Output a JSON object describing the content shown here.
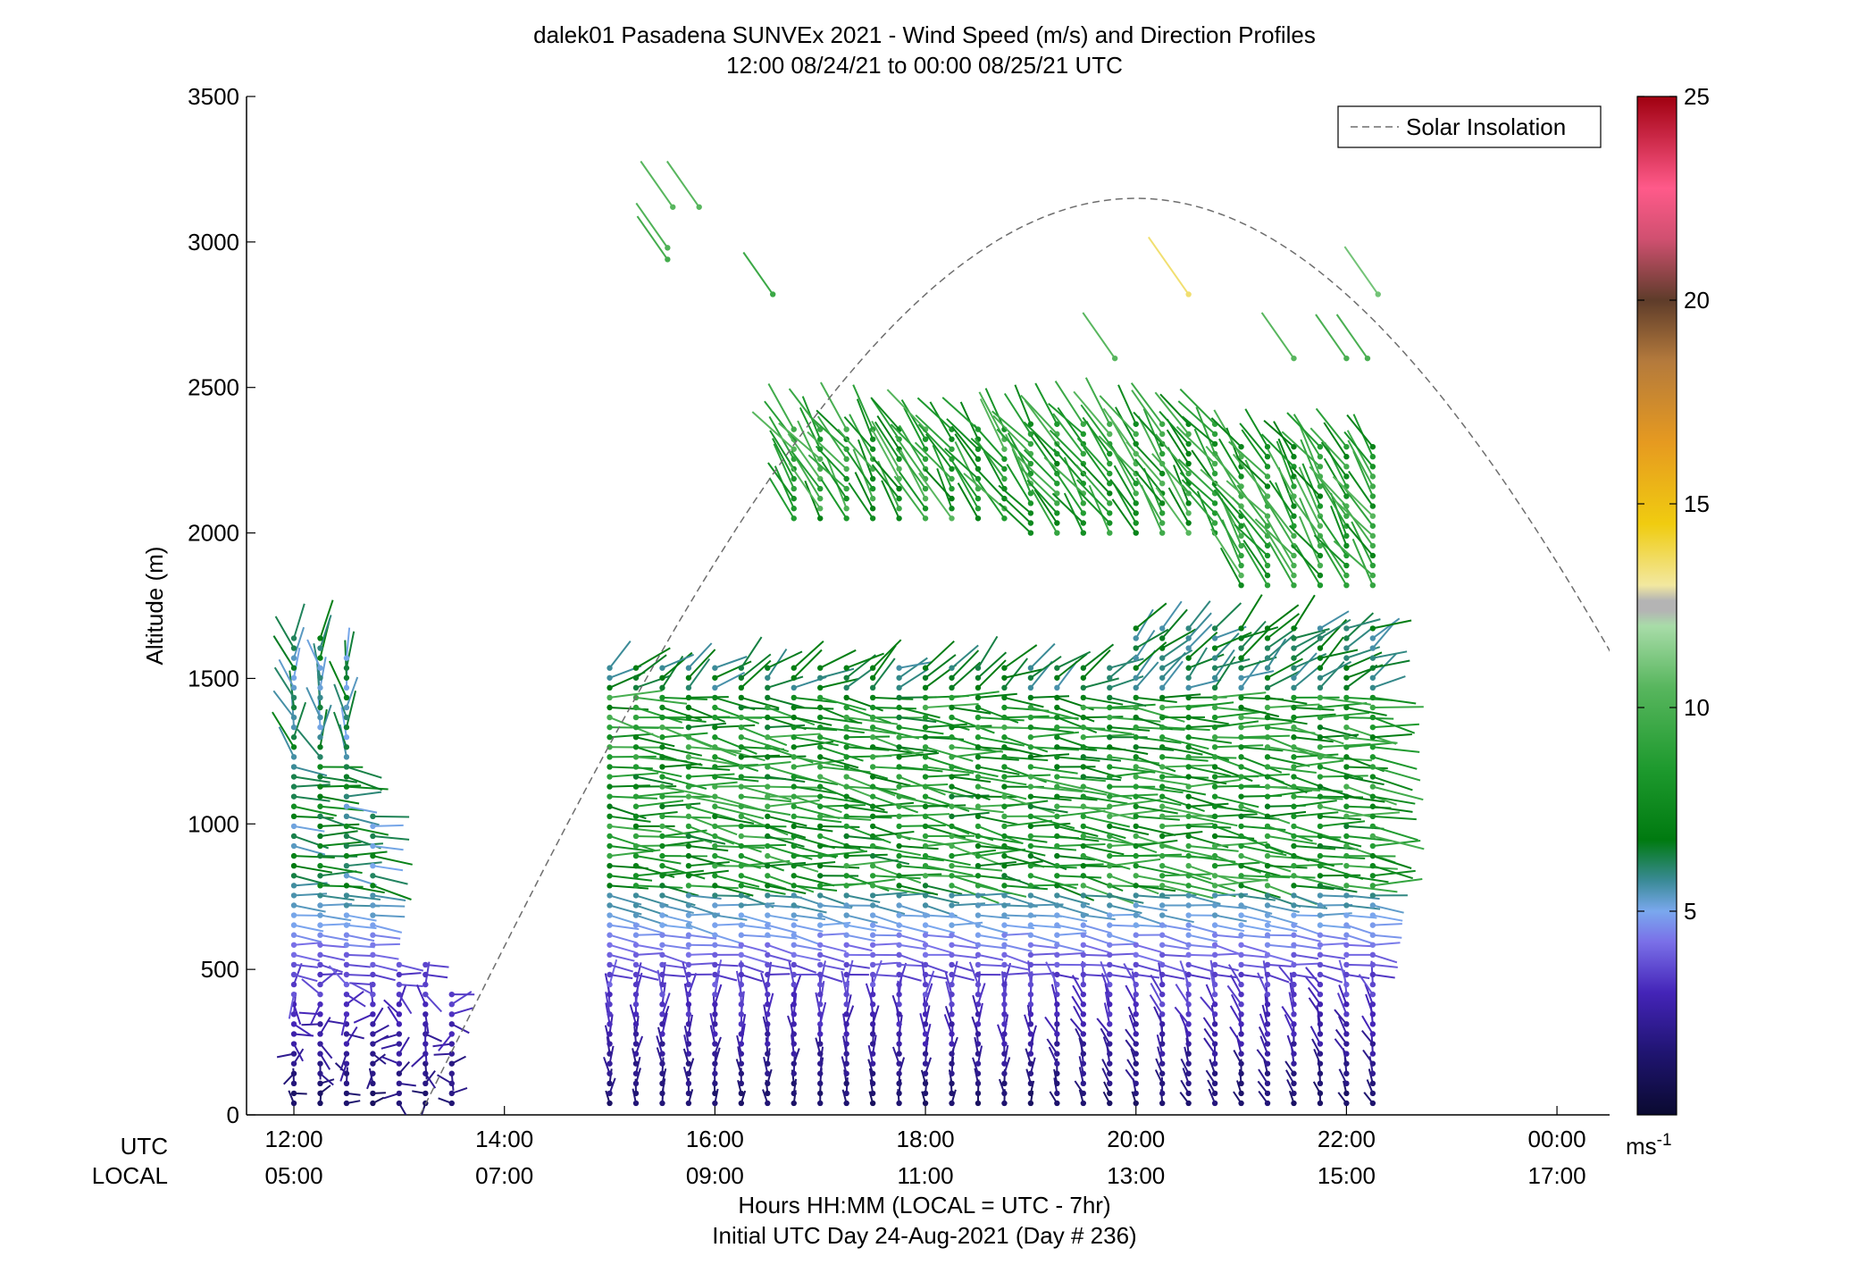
{
  "chart_data": {
    "type": "scatter",
    "title": "dalek01 Pasadena SUNVEx 2021 - Wind Speed (m/s) and Direction Profiles",
    "subtitle": "12:00 08/24/21 to 00:00 08/25/21  UTC",
    "ylabel": "Altitude (m)",
    "xlabel": "Hours HH:MM  (LOCAL = UTC - 7hr)",
    "xlabel2": "Initial UTC Day 24-Aug-2021 (Day # 236)",
    "row_label_utc": "UTC",
    "row_label_local": "LOCAL",
    "ylim": [
      0,
      3500
    ],
    "xlim_hours": [
      11.55,
      24.5
    ],
    "y_ticks": [
      "0",
      "500",
      "1000",
      "1500",
      "2000",
      "2500",
      "3000",
      "3500"
    ],
    "x_ticks_utc": [
      "12:00",
      "14:00",
      "16:00",
      "18:00",
      "20:00",
      "22:00",
      "00:00"
    ],
    "x_ticks_local": [
      "05:00",
      "07:00",
      "09:00",
      "11:00",
      "13:00",
      "15:00",
      "17:00"
    ],
    "legend": {
      "label": "Solar Insolation",
      "position": "top-right"
    },
    "colorbar": {
      "range": [
        0,
        25
      ],
      "ticks": [
        "5",
        "10",
        "15",
        "20",
        "25"
      ],
      "unit": "ms",
      "unit_exp": "-1"
    },
    "solar_insolation": {
      "peak_hour_utc": 20.0,
      "peak_altitude": 3150,
      "sunrise_hour_utc": 13.2,
      "sunset_hour_utc": 26.8
    },
    "wind_profiles": {
      "note_times_hours_utc": [
        12.0,
        12.25,
        12.5,
        12.75,
        13.0,
        13.25,
        13.5,
        15.0,
        15.25,
        15.5,
        15.75,
        16.0,
        16.25,
        16.5,
        16.75,
        17.0,
        17.25,
        17.5,
        17.75,
        18.0,
        18.25,
        18.5,
        18.75,
        19.0,
        19.25,
        19.5,
        19.75,
        20.0,
        20.25,
        20.5,
        20.75,
        21.0,
        21.25,
        21.5,
        21.75,
        22.0,
        22.25
      ],
      "speed_range_ms": [
        0.5,
        14
      ],
      "low_layer_top_m": 500,
      "mid_layer_top_m": 1550,
      "upper_layer_range_m": [
        1800,
        2500
      ]
    }
  }
}
